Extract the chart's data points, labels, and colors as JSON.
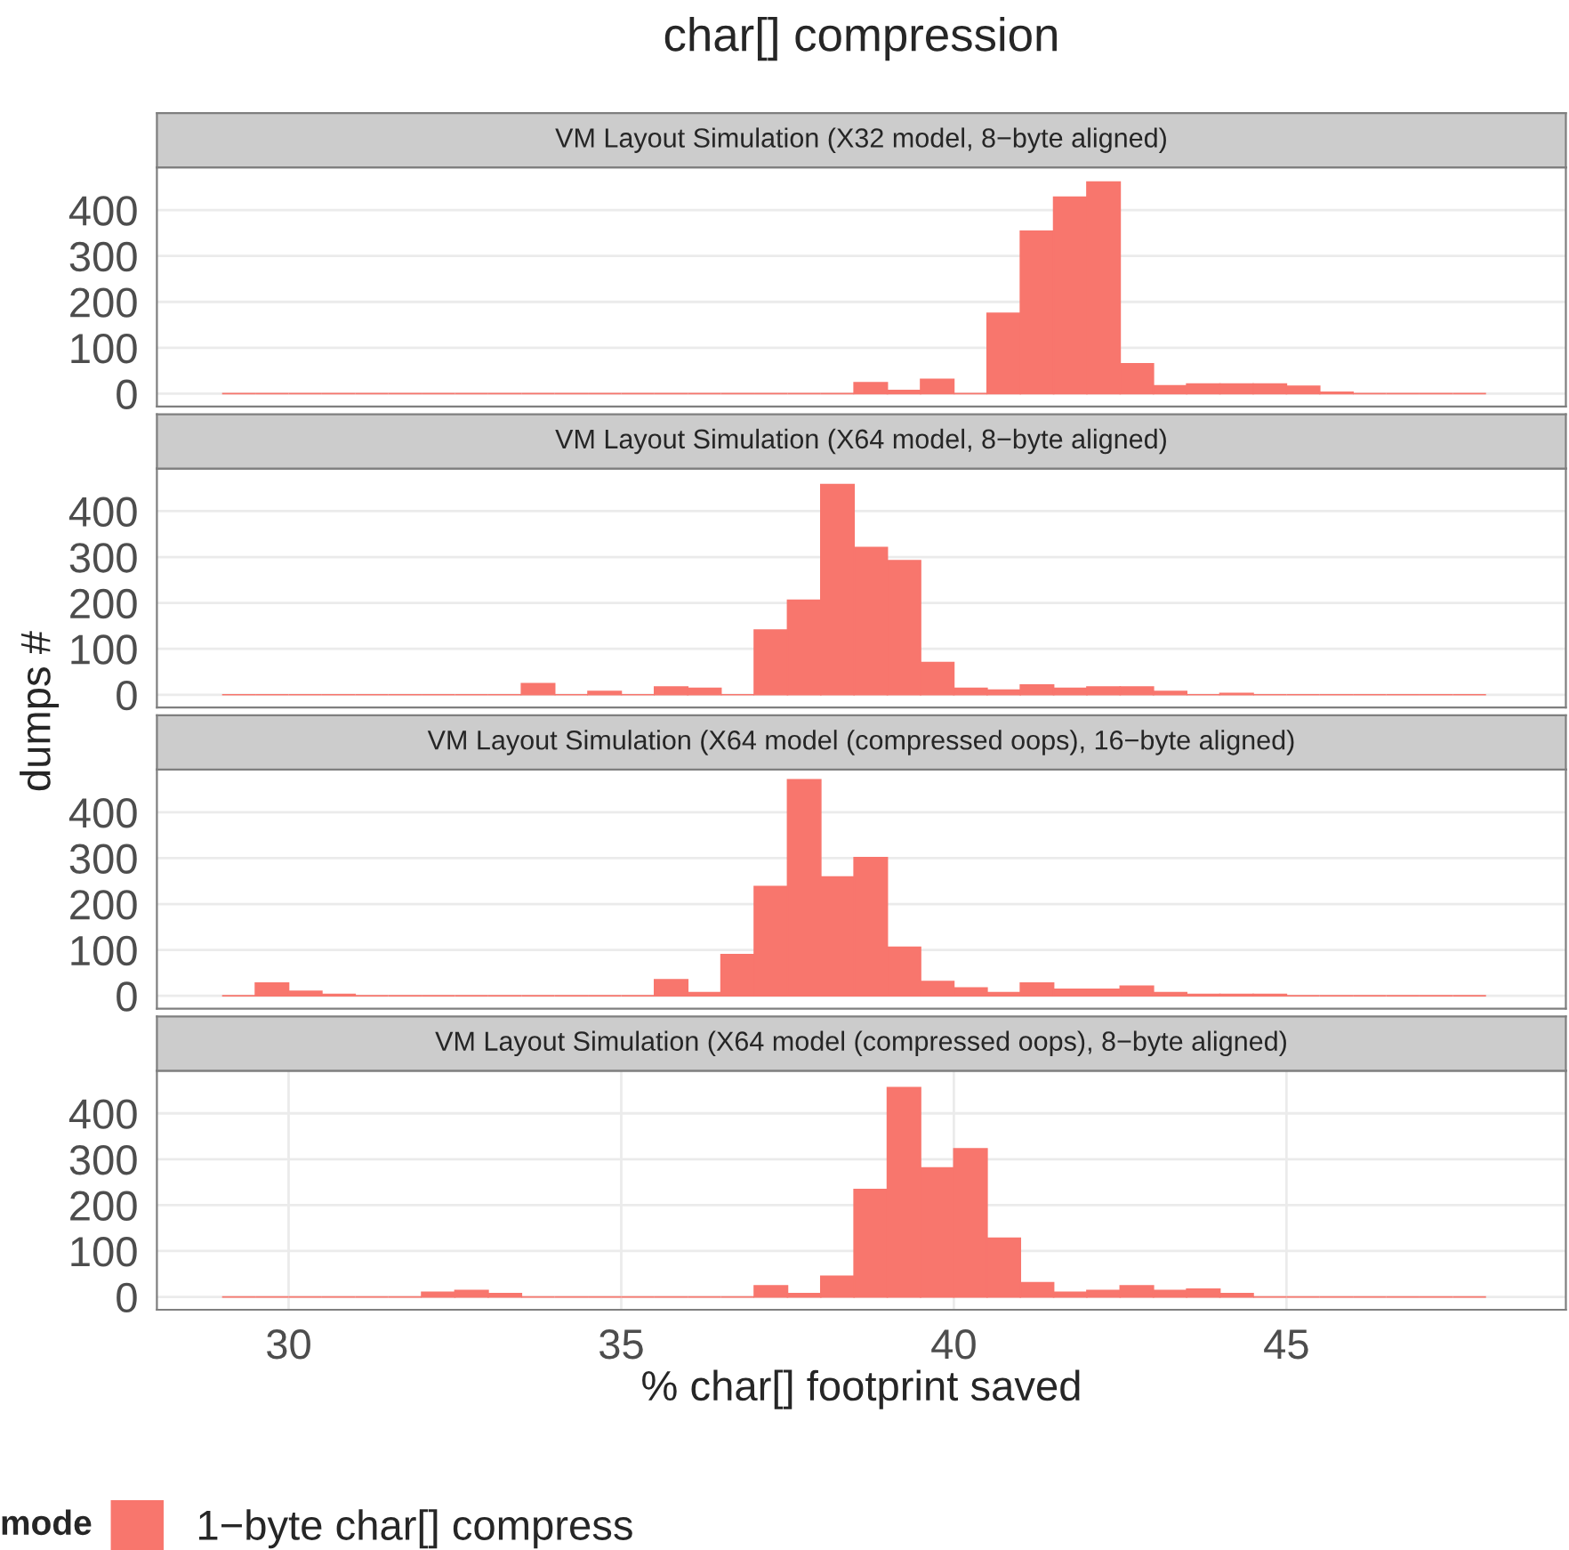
{
  "chart_data": [
    {
      "type": "histogram",
      "title": "char[] compression",
      "subtitle": "VM Layout Simulation (X32 model, 8−byte aligned)",
      "ylabel": "dumps #",
      "bins": [
        29,
        29.5,
        30,
        30.5,
        31,
        31.5,
        32,
        32.5,
        33,
        33.5,
        34,
        34.5,
        35,
        35.5,
        36,
        36.5,
        37,
        37.5,
        38,
        38.5,
        39,
        39.5,
        40,
        40.5,
        41,
        41.5,
        42,
        42.5,
        43,
        43.5,
        44,
        44.5,
        45,
        45.5,
        46,
        46.5,
        47,
        47.5,
        48
      ],
      "series": [
        {
          "color": "#f8766d",
          "values": [
            0,
            0,
            0,
            0,
            0,
            0,
            0,
            0,
            0,
            0,
            0,
            0,
            0,
            0,
            0,
            0,
            0,
            0,
            0,
            24,
            7,
            31,
            0,
            175,
            354,
            428,
            461,
            65,
            17,
            21,
            21,
            21,
            16,
            3,
            0,
            0,
            0,
            0
          ]
        }
      ],
      "xlim": [
        28.02,
        49.2
      ],
      "ylim": [
        -28,
        493
      ],
      "yticks": [
        0,
        100,
        200,
        300,
        400
      ],
      "tick_labels": "y",
      "grid": true
    },
    {
      "type": "histogram",
      "subtitle": "VM Layout Simulation (X64 model, 8−byte aligned)",
      "bins": [
        29,
        29.5,
        30,
        30.5,
        31,
        31.5,
        32,
        32.5,
        33,
        33.5,
        34,
        34.5,
        35,
        35.5,
        36,
        36.5,
        37,
        37.5,
        38,
        38.5,
        39,
        39.5,
        40,
        40.5,
        41,
        41.5,
        42,
        42.5,
        43,
        43.5,
        44,
        44.5,
        45,
        45.5,
        46,
        46.5,
        47,
        47.5,
        48
      ],
      "series": [
        {
          "color": "#f8766d",
          "values": [
            0,
            0,
            0,
            0,
            0,
            0,
            0,
            0,
            0,
            24,
            0,
            7,
            0,
            17,
            14,
            0,
            141,
            206,
            458,
            321,
            292,
            70,
            14,
            10,
            21,
            14,
            17,
            17,
            7,
            0,
            3,
            0,
            0,
            0,
            0,
            0,
            0,
            0
          ]
        }
      ],
      "xlim": [
        28.02,
        49.2
      ],
      "ylim": [
        -28,
        493
      ],
      "yticks": [
        0,
        100,
        200,
        300,
        400
      ],
      "tick_labels": "y",
      "grid": true
    },
    {
      "type": "histogram",
      "subtitle": "VM Layout Simulation (X64 model (compressed oops), 16−byte aligned)",
      "bins": [
        29,
        29.5,
        30,
        30.5,
        31,
        31.5,
        32,
        32.5,
        33,
        33.5,
        34,
        34.5,
        35,
        35.5,
        36,
        36.5,
        37,
        37.5,
        38,
        38.5,
        39,
        39.5,
        40,
        40.5,
        41,
        41.5,
        42,
        42.5,
        43,
        43.5,
        44,
        44.5,
        45,
        45.5,
        46,
        46.5,
        47,
        47.5,
        48
      ],
      "series": [
        {
          "color": "#f8766d",
          "values": [
            0,
            28,
            10,
            3,
            0,
            0,
            0,
            0,
            0,
            0,
            0,
            0,
            0,
            35,
            7,
            90,
            238,
            471,
            259,
            301,
            106,
            31,
            17,
            7,
            28,
            14,
            14,
            21,
            7,
            3,
            3,
            3,
            0,
            0,
            0,
            0,
            0,
            0
          ]
        }
      ],
      "xlim": [
        28.02,
        49.2
      ],
      "ylim": [
        -28,
        493
      ],
      "yticks": [
        0,
        100,
        200,
        300,
        400
      ],
      "tick_labels": "y",
      "grid": true
    },
    {
      "type": "histogram",
      "subtitle": "VM Layout Simulation (X64 model (compressed oops), 8−byte aligned)",
      "xlabel": "% char[] footprint saved",
      "legend_title": "mode",
      "legend": "bottom",
      "bins": [
        29,
        29.5,
        30,
        30.5,
        31,
        31.5,
        32,
        32.5,
        33,
        33.5,
        34,
        34.5,
        35,
        35.5,
        36,
        36.5,
        37,
        37.5,
        38,
        38.5,
        39,
        39.5,
        40,
        40.5,
        41,
        41.5,
        42,
        42.5,
        43,
        43.5,
        44,
        44.5,
        45,
        45.5,
        46,
        46.5,
        47,
        47.5,
        48
      ],
      "series": [
        {
          "name": "1−byte char[] compress",
          "color": "#f8766d",
          "values": [
            0,
            0,
            0,
            0,
            0,
            0,
            10,
            14,
            7,
            0,
            0,
            0,
            0,
            0,
            0,
            0,
            24,
            7,
            45,
            234,
            456,
            281,
            323,
            128,
            31,
            10,
            14,
            24,
            14,
            17,
            7,
            0,
            0,
            0,
            0,
            0,
            0,
            0
          ]
        }
      ],
      "xlim": [
        28.02,
        49.2
      ],
      "ylim": [
        -28,
        493
      ],
      "xticks": [
        30,
        35,
        40,
        45
      ],
      "yticks": [
        0,
        100,
        200,
        300,
        400
      ],
      "grid": true
    }
  ]
}
